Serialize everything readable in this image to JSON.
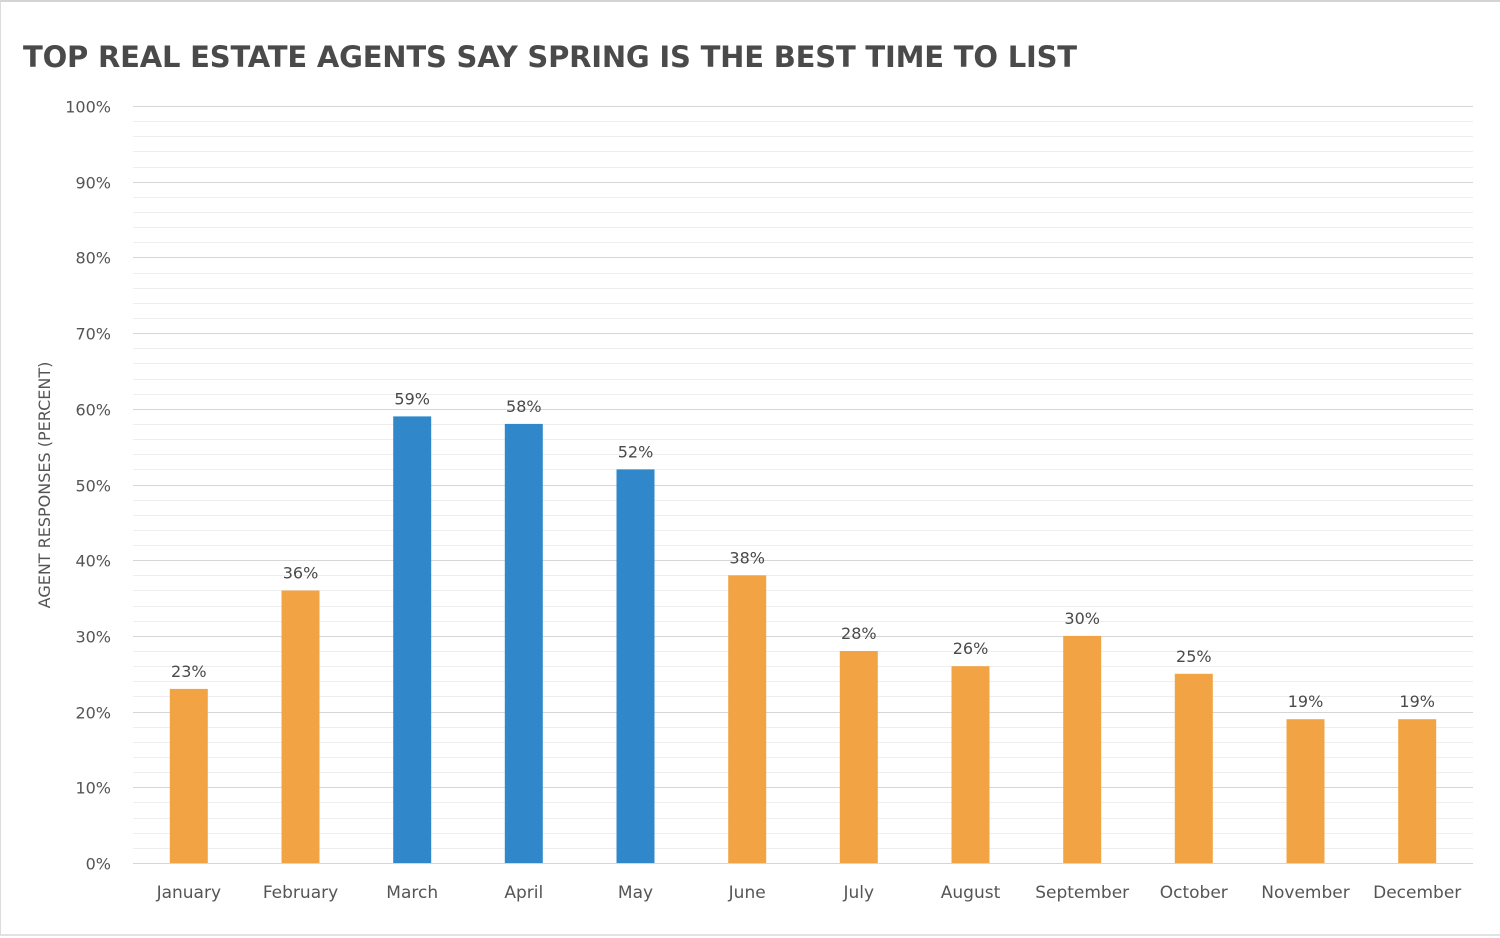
{
  "chart_data": {
    "type": "bar",
    "title": "TOP REAL ESTATE AGENTS SAY SPRING IS THE BEST TIME TO LIST",
    "xlabel": "",
    "ylabel": "AGENT RESPONSES (PERCENT)",
    "ylim": [
      0,
      100
    ],
    "y_ticks": [
      "0%",
      "10%",
      "20%",
      "30%",
      "40%",
      "50%",
      "60%",
      "70%",
      "80%",
      "90%",
      "100%"
    ],
    "grid": true,
    "categories": [
      "January",
      "February",
      "March",
      "April",
      "May",
      "June",
      "July",
      "August",
      "September",
      "October",
      "November",
      "December"
    ],
    "values": [
      23,
      36,
      59,
      58,
      52,
      38,
      28,
      26,
      30,
      25,
      19,
      19
    ],
    "value_labels": [
      "23%",
      "36%",
      "59%",
      "58%",
      "52%",
      "38%",
      "28%",
      "26%",
      "30%",
      "25%",
      "19%",
      "19%"
    ],
    "highlight_categories": [
      "March",
      "April",
      "May"
    ],
    "colors": {
      "default_bar": "#F2A444",
      "highlight_bar": "#3088CB",
      "major_grid": "#d6d6d6",
      "minor_grid": "#eeeeee",
      "text": "#555555"
    }
  }
}
